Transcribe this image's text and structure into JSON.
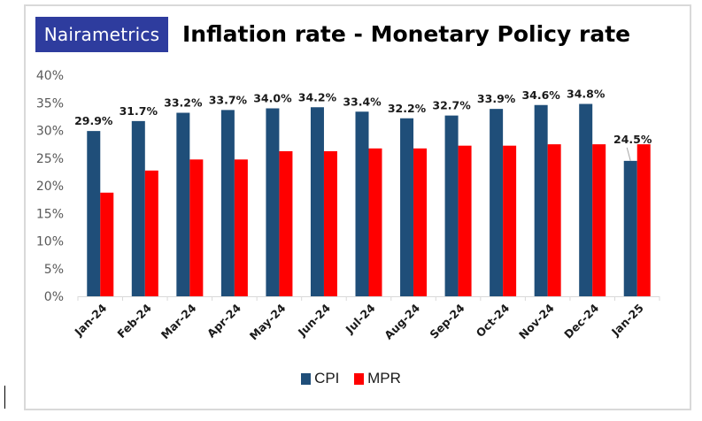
{
  "logo": {
    "text": "Nairametrics"
  },
  "chart_data": {
    "type": "bar",
    "title": "Inflation rate - Monetary Policy rate",
    "xlabel": "",
    "ylabel": "",
    "ylim": [
      0,
      40
    ],
    "yticks": [
      0,
      5,
      10,
      15,
      20,
      25,
      30,
      35,
      40
    ],
    "ytick_labels": [
      "0%",
      "5%",
      "10%",
      "15%",
      "20%",
      "25%",
      "30%",
      "35%",
      "40%"
    ],
    "grid": false,
    "categories": [
      "Jan-24",
      "Feb-24",
      "Mar-24",
      "Apr-24",
      "May-24",
      "Jun-24",
      "Jul-24",
      "Aug-24",
      "Sep-24",
      "Oct-24",
      "Nov-24",
      "Dec-24",
      "Jan-25"
    ],
    "series": [
      {
        "name": "CPI",
        "color": "#1f4e79",
        "values": [
          29.9,
          31.7,
          33.2,
          33.7,
          34.0,
          34.2,
          33.4,
          32.2,
          32.7,
          33.9,
          34.6,
          34.8,
          24.5
        ],
        "data_labels": [
          "29.9%",
          "31.7%",
          "33.2%",
          "33.7%",
          "34.0%",
          "34.2%",
          "33.4%",
          "32.2%",
          "32.7%",
          "33.9%",
          "34.6%",
          "34.8%",
          "24.5%"
        ]
      },
      {
        "name": "MPR",
        "color": "#ff0000",
        "values": [
          18.75,
          22.75,
          24.75,
          24.75,
          26.25,
          26.25,
          26.75,
          26.75,
          27.25,
          27.25,
          27.5,
          27.5,
          27.5
        ]
      }
    ],
    "legend": {
      "position": "bottom",
      "entries": [
        "CPI",
        "MPR"
      ]
    }
  }
}
